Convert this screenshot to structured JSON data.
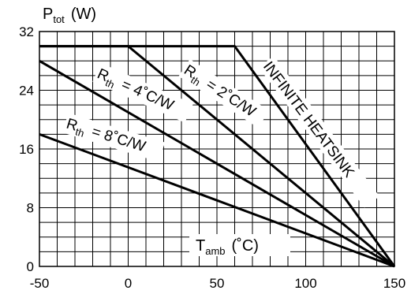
{
  "chart_data": {
    "type": "line",
    "y_axis": {
      "main": "P",
      "sub": "tot",
      "unit": "(W)"
    },
    "x_axis": {
      "main": "T",
      "sub": "amb",
      "unit": "(˚C)"
    },
    "xlim": [
      -50,
      150
    ],
    "ylim": [
      0,
      32
    ],
    "x_ticks": [
      -50,
      0,
      50,
      100,
      150
    ],
    "y_ticks": [
      0,
      8,
      16,
      24,
      32
    ],
    "grid": true,
    "series": [
      {
        "name": "INFINITE HEATSINK",
        "points": [
          [
            -50,
            30
          ],
          [
            60,
            30
          ],
          [
            150,
            0
          ]
        ]
      },
      {
        "name_main": "R",
        "name_sub": "th",
        "name_tail": "= 2˚C/W",
        "points": [
          [
            -50,
            30
          ],
          [
            0,
            30
          ],
          [
            150,
            0
          ]
        ]
      },
      {
        "name_main": "R",
        "name_sub": "th",
        "name_tail": "= 4˚C/W",
        "points": [
          [
            -50,
            28
          ],
          [
            150,
            0
          ]
        ]
      },
      {
        "name_main": "R",
        "name_sub": "th",
        "name_tail": "= 8˚C/W",
        "points": [
          [
            -50,
            18
          ],
          [
            150,
            0
          ]
        ]
      }
    ]
  }
}
